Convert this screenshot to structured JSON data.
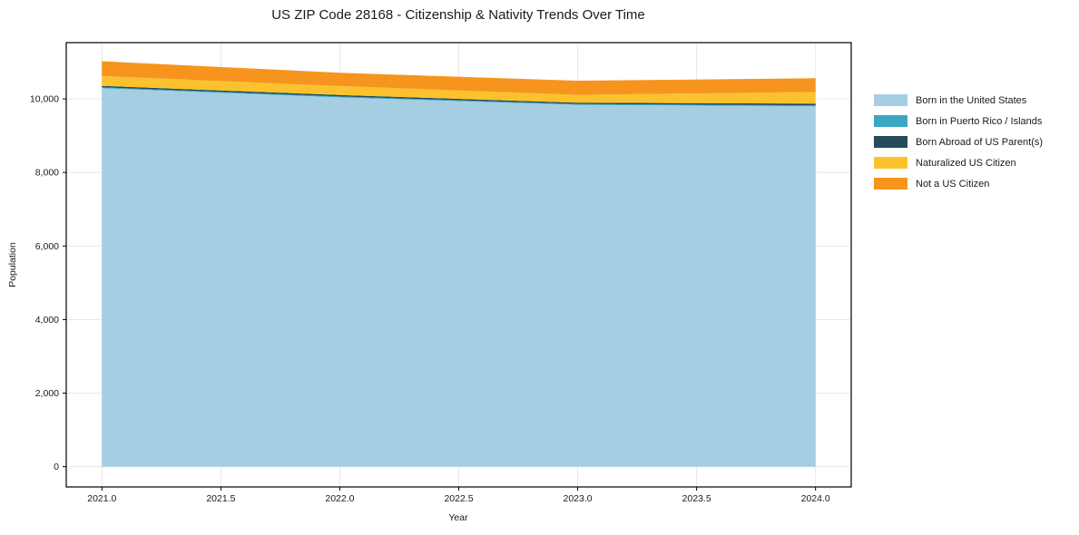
{
  "chart_data": {
    "type": "area",
    "stacked": true,
    "title": "US ZIP Code 28168 - Citizenship & Nativity Trends Over Time",
    "xlabel": "Year",
    "ylabel": "Population",
    "x": [
      2021,
      2022,
      2023,
      2024
    ],
    "series": [
      {
        "name": "Born in the United States",
        "color": "#a5cee3",
        "values": [
          10290,
          10040,
          9840,
          9800
        ]
      },
      {
        "name": "Born in Puerto Rico / Islands",
        "color": "#3ba7c3",
        "values": [
          25,
          25,
          20,
          25
        ]
      },
      {
        "name": "Born Abroad of US Parent(s)",
        "color": "#254b5c",
        "values": [
          40,
          40,
          35,
          45
        ]
      },
      {
        "name": "Naturalized US Citizen",
        "color": "#fbc22d",
        "values": [
          265,
          245,
          215,
          320
        ]
      },
      {
        "name": "Not a US Citizen",
        "color": "#f6941e",
        "values": [
          405,
          360,
          385,
          370
        ]
      }
    ],
    "stack_totals": [
      11025,
      10710,
      10495,
      10560
    ],
    "xlim": [
      2020.85,
      2024.15
    ],
    "ylim": [
      -550,
      11530
    ],
    "x_ticks": [
      {
        "value": 2021.0,
        "label": "2021.0"
      },
      {
        "value": 2021.5,
        "label": "2021.5"
      },
      {
        "value": 2022.0,
        "label": "2022.0"
      },
      {
        "value": 2022.5,
        "label": "2022.5"
      },
      {
        "value": 2023.0,
        "label": "2023.0"
      },
      {
        "value": 2023.5,
        "label": "2023.5"
      },
      {
        "value": 2024.0,
        "label": "2024.0"
      }
    ],
    "y_ticks": [
      {
        "value": 0,
        "label": "0"
      },
      {
        "value": 2000,
        "label": "2,000"
      },
      {
        "value": 4000,
        "label": "4,000"
      },
      {
        "value": 6000,
        "label": "6,000"
      },
      {
        "value": 8000,
        "label": "8,000"
      },
      {
        "value": 10000,
        "label": "10,000"
      }
    ],
    "grid": true,
    "grid_color": "#e8e8e8",
    "spine_color": "#000000",
    "tick_label_color": "#1a1a1a",
    "legend_position": "right"
  }
}
